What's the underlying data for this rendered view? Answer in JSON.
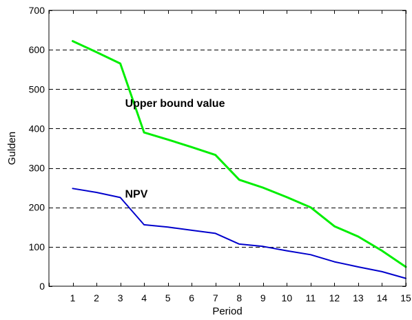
{
  "chart_data": {
    "type": "line",
    "title": "",
    "xlabel": "Period",
    "ylabel": "Gulden",
    "x": [
      1,
      2,
      3,
      4,
      5,
      6,
      7,
      8,
      9,
      10,
      11,
      12,
      13,
      14,
      15
    ],
    "xlim": [
      0,
      15
    ],
    "ylim": [
      0,
      700
    ],
    "yticks": [
      0,
      100,
      200,
      300,
      400,
      500,
      600,
      700
    ],
    "grid": "horizontal dashed",
    "legend": "none",
    "series": [
      {
        "name": "Upper bound value",
        "color": "#00ee00",
        "values": [
          622,
          594,
          565,
          390,
          372,
          353,
          333,
          270,
          250,
          226,
          200,
          152,
          126,
          90,
          49
        ]
      },
      {
        "name": "NPV",
        "color": "#0000cc",
        "values": [
          248,
          238,
          225,
          156,
          150,
          142,
          134,
          107,
          101,
          90,
          80,
          62,
          49,
          37,
          20
        ]
      }
    ]
  }
}
